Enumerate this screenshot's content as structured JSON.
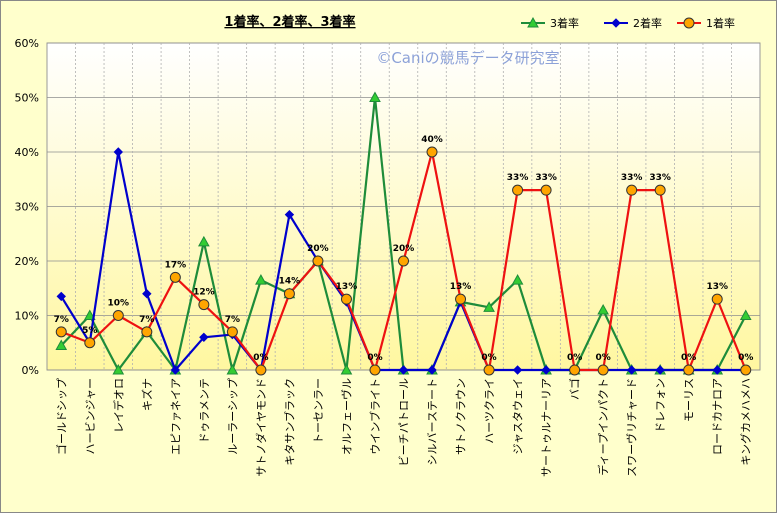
{
  "chart_data": {
    "type": "line",
    "title": "1着率、2着率、3着率",
    "watermark": "©Caniの競馬データ研究室",
    "xlabel": "",
    "ylabel": "",
    "ylim": [
      0,
      60
    ],
    "yticks": [
      "0%",
      "10%",
      "20%",
      "30%",
      "40%",
      "50%",
      "60%"
    ],
    "grid": true,
    "legend_position": "top-right",
    "categories": [
      "ゴールドシップ",
      "ハービンジャー",
      "レイデオロ",
      "キズナ",
      "エピファネイア",
      "ドゥラメンテ",
      "ルーラーシップ",
      "サトノダイヤモンド",
      "キタサンブラック",
      "トーセンラー",
      "オルフェーヴル",
      "ウインブライト",
      "ビーチパトロール",
      "シルバーステート",
      "サトノクラウン",
      "ハーツクライ",
      "ジャスタウェイ",
      "サートゥルナーリア",
      "バゴ",
      "ディープインパクト",
      "スワーヴリチャード",
      "ドレフォン",
      "モーリス",
      "ロードカナロア",
      "キングカメハメハ"
    ],
    "series": [
      {
        "name": "3着率",
        "color": "#1E8C3A",
        "fill": "#33CC33",
        "marker": "triangle",
        "values": [
          4.5,
          10,
          0,
          7,
          0,
          23.5,
          0,
          16.5,
          14,
          20,
          0,
          50,
          0,
          0,
          12.5,
          11.5,
          16.5,
          0,
          0,
          11,
          0,
          0,
          0,
          0,
          10
        ]
      },
      {
        "name": "2着率",
        "color": "#0000CC",
        "fill": "#0000CC",
        "marker": "diamond",
        "values": [
          13.5,
          5,
          40,
          14,
          0,
          6,
          6.5,
          0,
          28.5,
          20,
          12.5,
          0,
          0,
          0,
          12.5,
          0,
          0,
          0,
          0,
          0,
          0,
          0,
          0,
          0,
          0
        ]
      },
      {
        "name": "1着率",
        "color": "#EE1111",
        "fill": "#FFA500",
        "marker": "circle",
        "values": [
          7,
          5,
          10,
          7,
          17,
          12,
          7,
          0,
          14,
          20,
          13,
          0,
          20,
          40,
          13,
          0,
          33,
          33,
          0,
          0,
          33,
          33,
          0,
          13,
          0
        ],
        "data_labels": [
          "7%",
          "5%",
          "10%",
          "7%",
          "17%",
          "12%",
          "7%",
          "0%",
          "14%",
          "20%",
          "13%",
          "0%",
          "20%",
          "40%",
          "13%",
          "0%",
          "33%",
          "33%",
          "0%",
          "0%",
          "33%",
          "33%",
          "0%",
          "13%",
          "0%"
        ]
      }
    ]
  }
}
